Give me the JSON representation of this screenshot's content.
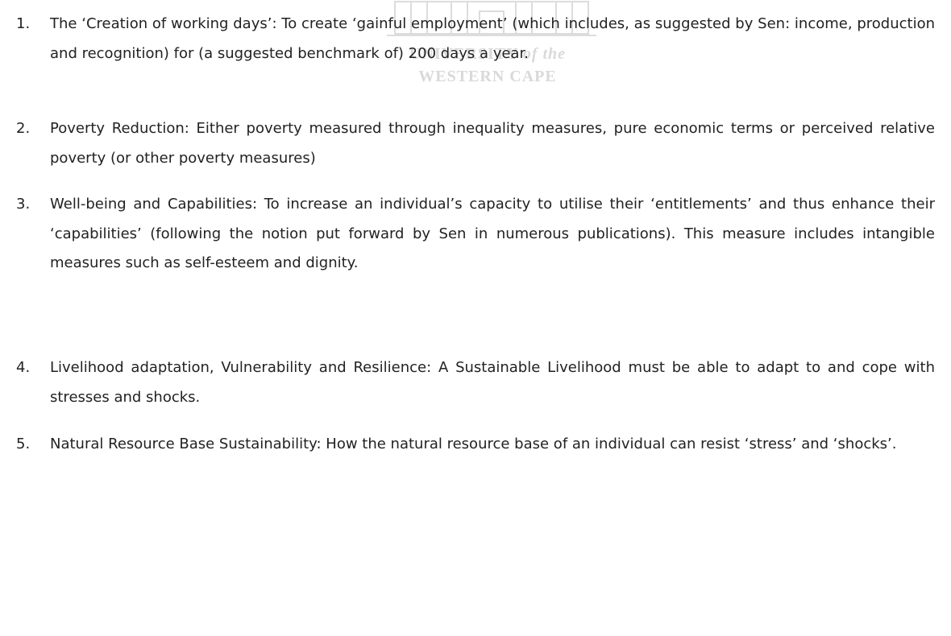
{
  "watermark": {
    "line1": "UNIVERSITY",
    "line1_suffix": "of the",
    "line2": "WESTERN CAPE"
  },
  "items": [
    {
      "number": "1.",
      "text": "The ‘Creation of working days’: To create ‘gainful employment’ (which includes, as suggested by Sen: income, production and recognition) for (a suggested benchmark of) 200 days a year."
    },
    {
      "number": "2.",
      "text": "Poverty Reduction: Either poverty measured through inequality measures, pure economic terms or perceived relative poverty (or other poverty measures)"
    },
    {
      "number": "3.",
      "text": "Well-being and Capabilities: To increase an individual’s capacity to utilise their ‘entitlements’ and thus enhance their ‘capabilities’ (following the notion put forward by Sen in numerous publications). This measure includes intangible measures such as self-esteem and dignity."
    },
    {
      "number": "4.",
      "text": "Livelihood adaptation, Vulnerability and Resilience: A Sustainable Livelihood must be able to adapt to and cope with stresses and shocks."
    },
    {
      "number": "5.",
      "text": "Natural Resource Base Sustainability: How the natural resource base of an individual can resist ‘stress’ and ‘shocks’."
    }
  ]
}
